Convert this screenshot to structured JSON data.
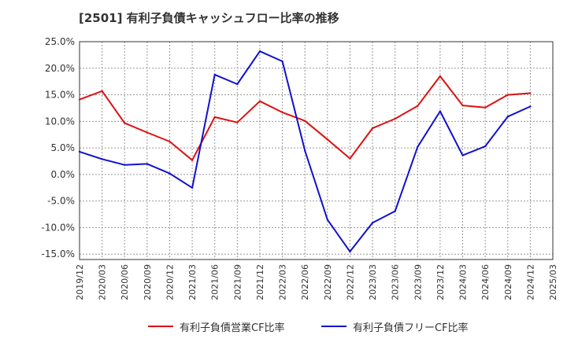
{
  "chart_data": {
    "type": "line",
    "title": "[2501]  有利子負債キャッシュフロー比率の推移",
    "ylim": [
      -16,
      25
    ],
    "y_ticks": [
      25.0,
      20.0,
      15.0,
      10.0,
      5.0,
      0.0,
      -5.0,
      -10.0,
      -15.0
    ],
    "y_tick_labels": [
      "25.0%",
      "20.0%",
      "15.0%",
      "10.0%",
      "5.0%",
      "0.0%",
      "-5.0%",
      "-10.0%",
      "-15.0%"
    ],
    "x_tick_labels": [
      "2019/12",
      "2020/03",
      "2020/06",
      "2020/09",
      "2020/12",
      "2021/03",
      "2021/06",
      "2021/09",
      "2021/12",
      "2022/03",
      "2022/06",
      "2022/09",
      "2022/12",
      "2023/03",
      "2023/06",
      "2023/09",
      "2023/12",
      "2024/03",
      "2024/06",
      "2024/09",
      "2024/12",
      "2025/03"
    ],
    "grid": true,
    "legend_position": "bottom",
    "series": [
      {
        "name": "有利子負債営業CF比率",
        "color": "#dd1111",
        "values": [
          14.1,
          15.7,
          9.7,
          7.9,
          6.2,
          2.7,
          10.8,
          9.8,
          13.8,
          11.7,
          10.1,
          6.6,
          3.0,
          8.7,
          10.5,
          12.9,
          18.5,
          13.0,
          12.6,
          15.0,
          15.3
        ]
      },
      {
        "name": "有利子負債フリーCF比率",
        "color": "#1111cc",
        "values": [
          4.3,
          2.9,
          1.8,
          2.0,
          0.2,
          -2.5,
          18.8,
          17.0,
          23.2,
          21.3,
          4.5,
          -8.5,
          -14.5,
          -9.1,
          -6.9,
          5.2,
          11.9,
          3.6,
          5.3,
          10.9,
          12.8
        ]
      }
    ]
  }
}
